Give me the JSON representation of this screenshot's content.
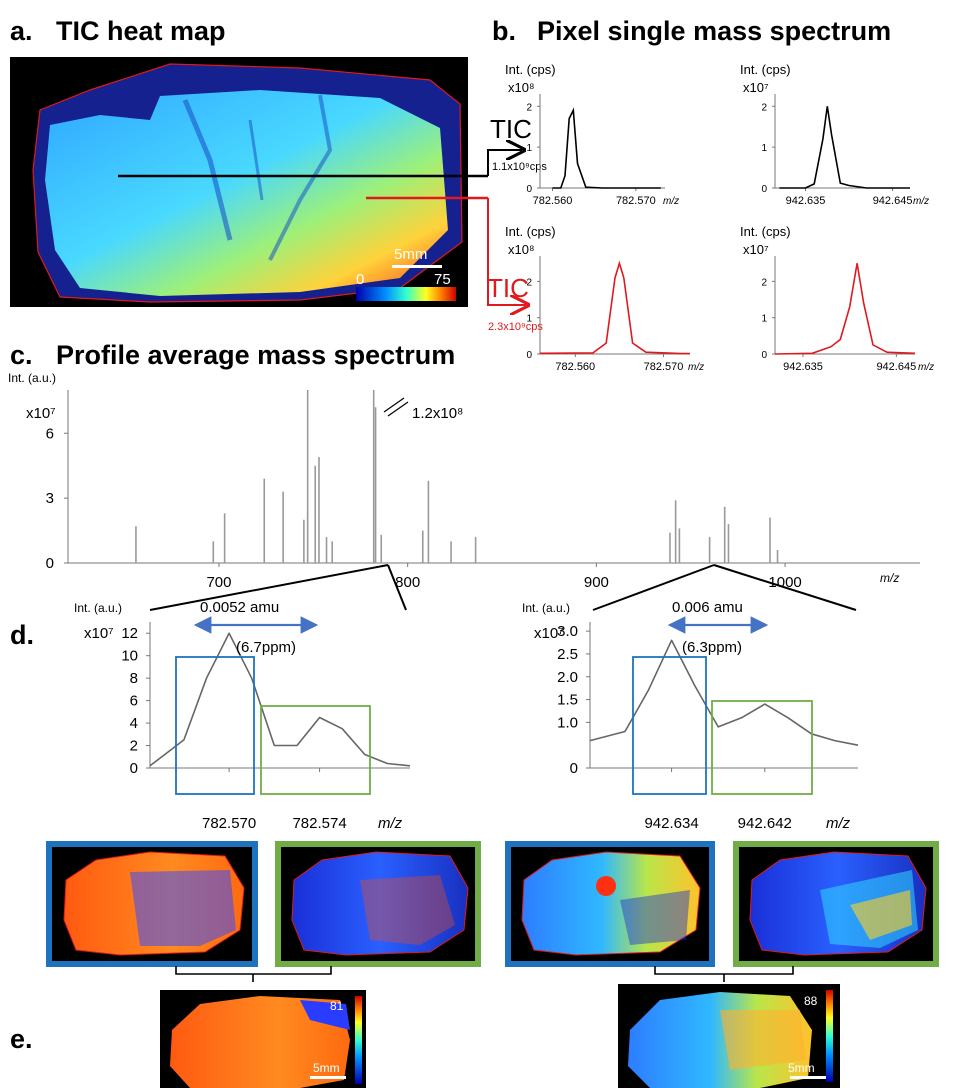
{
  "panel_a": {
    "label": "a.",
    "title": "TIC heat map",
    "scalebar": "5mm",
    "colorbar_min": "0",
    "colorbar_max": "75",
    "tic_black": "TIC",
    "tic_black_value": "1.1x10⁹cps",
    "tic_red": "TIC",
    "tic_red_value": "2.3x10⁹cps"
  },
  "panel_b": {
    "label": "b.",
    "title": "Pixel single mass spectrum",
    "ylabel": "Int. (cps)",
    "xunit": "m/z"
  },
  "panel_c": {
    "label": "c.",
    "title": "Profile average mass spectrum",
    "ylabel": "Int. (a.u.)",
    "yexp": "x10⁷",
    "peak_annotation": "1.2x10⁸",
    "xunit": "m/z"
  },
  "panel_d": {
    "label": "d.",
    "ylabel": "Int. (a.u.)",
    "yexp": "x10⁷",
    "xunit": "m/z",
    "left_delta": "0.0052 amu",
    "left_ppm": "(6.7ppm)",
    "right_delta": "0.006 amu",
    "right_ppm": "(6.3ppm)"
  },
  "panel_e": {
    "label": "e.",
    "left_max": "81",
    "right_max": "88",
    "scalebar": "5mm"
  },
  "colors": {
    "black_trace": "#000000",
    "red_trace": "#e0191e",
    "blue_box": "#1e73be",
    "green_box": "#70ad47",
    "arrow": "#4472c4",
    "spectrum_gray": "#999999"
  },
  "chart_data": [
    {
      "type": "line",
      "title": "",
      "ylabel": "Int. (cps)",
      "xlabel": "m/z",
      "yexp": "x10⁸",
      "xticks": [
        "782.560",
        "782.570"
      ],
      "yticks": [
        "0",
        "1",
        "2"
      ],
      "ylim": [
        0,
        2.3
      ],
      "series": [
        {
          "x": [
            782.56,
            782.561,
            782.5615,
            782.562,
            782.5625,
            782.563,
            782.564,
            782.566,
            782.57,
            782.573
          ],
          "values": [
            0,
            0,
            0.3,
            1.7,
            1.9,
            0.6,
            0.02,
            0,
            0,
            0
          ]
        }
      ],
      "color": "black"
    },
    {
      "type": "line",
      "title": "",
      "ylabel": "Int. (cps)",
      "xlabel": "m/z",
      "yexp": "x10⁷",
      "xticks": [
        "942.635",
        "942.645"
      ],
      "yticks": [
        "0",
        "1",
        "2"
      ],
      "ylim": [
        0,
        2.3
      ],
      "series": [
        {
          "x": [
            942.632,
            942.635,
            942.636,
            942.637,
            942.6375,
            942.638,
            942.639,
            942.64,
            942.642,
            942.647
          ],
          "values": [
            0,
            0,
            0.1,
            1.2,
            2.0,
            1.3,
            0.12,
            0.06,
            0,
            0
          ]
        }
      ],
      "color": "black"
    },
    {
      "type": "line",
      "title": "",
      "ylabel": "Int. (cps)",
      "xlabel": "m/z",
      "yexp": "x10⁸",
      "xticks": [
        "782.560",
        "782.570"
      ],
      "yticks": [
        "0",
        "1",
        "2"
      ],
      "ylim": [
        0,
        2.7
      ],
      "series": [
        {
          "x": [
            782.556,
            782.562,
            782.5635,
            782.5645,
            782.565,
            782.5655,
            782.5665,
            782.568,
            782.572,
            782.573
          ],
          "values": [
            0.02,
            0.03,
            0.3,
            2.1,
            2.5,
            2.1,
            0.3,
            0.05,
            0.01,
            0.01
          ]
        }
      ],
      "color": "red"
    },
    {
      "type": "line",
      "title": "",
      "ylabel": "Int. (cps)",
      "xlabel": "m/z",
      "yexp": "x10⁷",
      "xticks": [
        "942.635",
        "942.645"
      ],
      "yticks": [
        "0",
        "1",
        "2"
      ],
      "ylim": [
        0,
        2.7
      ],
      "series": [
        {
          "x": [
            942.632,
            942.636,
            942.638,
            942.639,
            942.64,
            942.6408,
            942.6415,
            942.6425,
            942.644,
            942.647
          ],
          "values": [
            0,
            0.02,
            0.2,
            0.4,
            1.3,
            2.5,
            1.4,
            0.25,
            0.05,
            0.02
          ]
        }
      ],
      "color": "red"
    },
    {
      "type": "bar",
      "title": "",
      "ylabel": "Int. (a.u.)",
      "xlabel": "m/z",
      "yexp": "x10⁷",
      "xticks": [
        "700",
        "800",
        "900",
        "1000"
      ],
      "yticks": [
        "0",
        "3",
        "6"
      ],
      "xlim": [
        620,
        1045
      ],
      "ylim": [
        0,
        8
      ],
      "x": [
        656,
        697,
        703,
        724,
        734,
        745,
        747,
        751,
        753,
        757,
        760,
        782,
        783,
        786,
        808,
        811,
        823,
        836,
        939,
        942,
        944,
        960,
        968,
        970,
        992,
        996
      ],
      "values": [
        1.7,
        1.0,
        2.3,
        3.9,
        3.3,
        2.0,
        8.0,
        4.5,
        4.9,
        1.2,
        1.0,
        8.0,
        7.2,
        1.3,
        1.5,
        3.8,
        1.0,
        1.2,
        1.4,
        2.9,
        1.6,
        1.2,
        2.6,
        1.8,
        2.1,
        0.6
      ],
      "color": "gray"
    },
    {
      "type": "line",
      "title": "",
      "ylabel": "Int. (a.u.)",
      "xlabel": "m/z",
      "yexp": "x10⁷",
      "xticks": [
        "782.570",
        "782.574"
      ],
      "yticks": [
        "0",
        "2",
        "4",
        "6",
        "8",
        "10",
        "12"
      ],
      "ylim": [
        0,
        13
      ],
      "series": [
        {
          "x": [
            782.5665,
            782.568,
            782.569,
            782.57,
            782.571,
            782.572,
            782.573,
            782.574,
            782.575,
            782.576,
            782.577,
            782.578
          ],
          "values": [
            0.2,
            2.5,
            8.0,
            12.0,
            8.0,
            2.0,
            2.0,
            4.5,
            3.5,
            1.2,
            0.4,
            0.2
          ]
        }
      ],
      "color": "gray"
    },
    {
      "type": "line",
      "title": "",
      "ylabel": "Int. (a.u.)",
      "xlabel": "m/z",
      "yexp": "x10⁷",
      "xticks": [
        "942.634",
        "942.642"
      ],
      "yticks": [
        "0",
        "1.0",
        "1.5",
        "2.0",
        "2.5",
        "3.0"
      ],
      "ylim": [
        0,
        3.2
      ],
      "series": [
        {
          "x": [
            942.627,
            942.63,
            942.632,
            942.634,
            942.636,
            942.638,
            942.64,
            942.642,
            942.644,
            942.646,
            942.648,
            942.65
          ],
          "values": [
            0.6,
            0.8,
            1.7,
            2.8,
            1.8,
            0.9,
            1.1,
            1.4,
            1.1,
            0.75,
            0.6,
            0.5
          ]
        }
      ],
      "color": "gray"
    }
  ]
}
